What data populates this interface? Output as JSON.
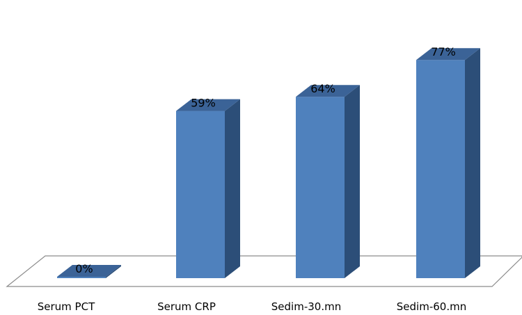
{
  "chart_data": {
    "type": "bar",
    "style": "3d-column",
    "categories": [
      "Serum PCT",
      "Serum CRP",
      "Sedim-30.mn",
      "Sedim-60.mn"
    ],
    "values": [
      0,
      59,
      64,
      77
    ],
    "data_labels": [
      "0%",
      "59%",
      "64%",
      "77%"
    ],
    "unit": "%",
    "ylim": [
      0,
      82
    ],
    "grid": false,
    "legend": "none",
    "colors": {
      "bar_front": "#4f81bd",
      "bar_side": "#2c4e78",
      "bar_top": "#3b6397",
      "floor_stroke": "#8c8c8c"
    }
  }
}
